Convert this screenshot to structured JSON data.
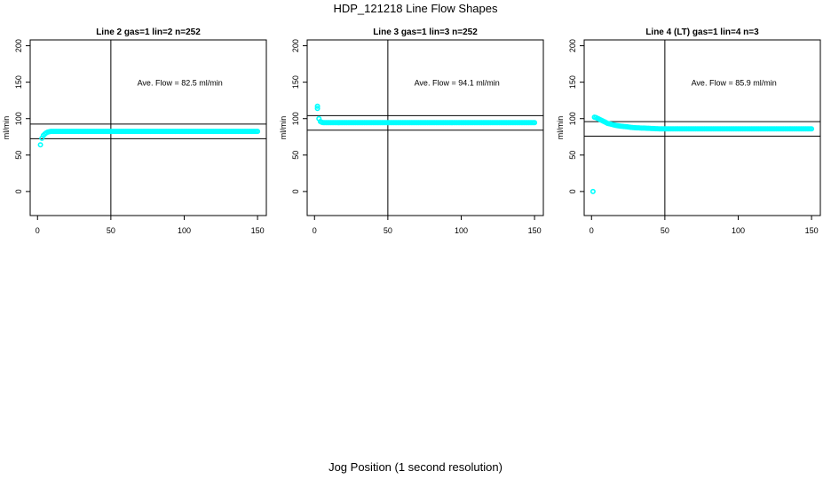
{
  "title": "HDP_121218  Line Flow Shapes",
  "xcaption": "Jog Position (1 second resolution)",
  "colors": {
    "points": "#00ffff",
    "axes": "#000000"
  },
  "chart_data": [
    {
      "type": "scatter",
      "title": "Line 2 gas=1 lin=2 n=252",
      "ylabel": "ml/min",
      "xlim": [
        -5,
        156
      ],
      "ylim": [
        -33,
        208
      ],
      "xticks": [
        0,
        50,
        100,
        150
      ],
      "yticks": [
        0,
        50,
        100,
        150,
        200
      ],
      "vline": 50,
      "hlines": [
        92.5,
        72.5
      ],
      "annotation": {
        "text": "Ave. Flow =  82.5  ml/min",
        "x": 68,
        "y": 149
      },
      "extra_points": [
        [
          2,
          64
        ]
      ],
      "x_start": 3,
      "y": [
        73,
        77,
        79,
        80.5,
        81.5,
        82,
        82.5,
        82.5,
        82.5,
        82.5,
        82.5,
        82.5,
        82.5,
        82.5,
        82.5,
        82.5,
        82.5,
        82.5,
        82.5,
        82.5,
        82.5,
        82.5,
        82.5,
        82.5,
        82.5,
        82.5,
        82.5,
        82.5,
        82.5,
        82.5,
        82.5,
        82.5,
        82.5,
        82.5,
        82.5,
        82.5,
        82.5,
        82.5,
        82.5,
        82.5,
        82.5,
        82.5,
        82.5,
        82.5,
        82.5,
        82.5,
        82.5,
        82.5,
        82.5,
        82.5,
        82.5,
        82.5,
        82.5,
        82.5,
        82.5,
        82.5,
        82.5,
        82.5,
        82.5,
        82.5,
        82.5,
        82.5,
        82.5,
        82.5,
        82.5,
        82.5,
        82.5,
        82.5,
        82.5,
        82.5,
        82.5,
        82.5,
        82.5,
        82.5,
        82.5,
        82.5,
        82.5,
        82.5,
        82.5,
        82.5,
        82.5,
        82.5,
        82.5,
        82.5,
        82.5,
        82.5,
        82.5,
        82.5,
        82.5,
        82.5,
        82.5,
        82.5,
        82.5,
        82.5,
        82.5,
        82.5,
        82.5,
        82.5,
        82.5,
        82.5,
        82.5,
        82.5,
        82.5,
        82.5,
        82.5,
        82.5,
        82.5,
        82.5,
        82.5,
        82.5,
        82.5,
        82.5,
        82.5,
        82.5,
        82.5,
        82.5,
        82.5,
        82.5,
        82.5,
        82.5,
        82.5,
        82.5,
        82.5,
        82.5,
        82.5,
        82.5,
        82.5,
        82.5,
        82.5,
        82.5,
        82.5,
        82.5,
        82.5,
        82.5,
        82.5,
        82.5,
        82.5,
        82.5,
        82.5,
        82.5,
        82.5,
        82.5,
        82.5,
        82.5,
        82.5,
        82.5,
        82.5,
        82.5
      ]
    },
    {
      "type": "scatter",
      "title": "Line 3 gas=1 lin=3 n=252",
      "ylabel": "ml/min",
      "xlim": [
        -5,
        156
      ],
      "ylim": [
        -33,
        208
      ],
      "xticks": [
        0,
        50,
        100,
        150
      ],
      "yticks": [
        0,
        50,
        100,
        150,
        200
      ],
      "vline": 50,
      "hlines": [
        104.1,
        84.1
      ],
      "annotation": {
        "text": "Ave. Flow =  94.1  ml/min",
        "x": 68,
        "y": 149
      },
      "extra_points": [
        [
          2,
          117
        ],
        [
          2,
          114
        ]
      ],
      "x_start": 3,
      "y": [
        100,
        96,
        95,
        94.5,
        94.5,
        94.5,
        94.5,
        94.5,
        94.5,
        94.5,
        94.5,
        94.5,
        94.5,
        94.5,
        94.5,
        94.5,
        94.5,
        94.5,
        94.5,
        94.5,
        94.5,
        94.5,
        94.5,
        94.5,
        94.5,
        94.5,
        94.5,
        94.5,
        94.5,
        94.5,
        94.5,
        94.5,
        94.5,
        94.5,
        94.5,
        94.5,
        94.5,
        94.5,
        94.5,
        94.5,
        94.5,
        94.5,
        94.5,
        94.5,
        94.5,
        94.5,
        94.5,
        94.5,
        94.5,
        94.5,
        94.5,
        94.5,
        94.5,
        94.5,
        94.5,
        94.5,
        94.5,
        94.5,
        94.5,
        94.5,
        94.5,
        94.5,
        94.5,
        94.5,
        94.5,
        94.5,
        94.5,
        94.5,
        94.5,
        94.5,
        94.5,
        94.5,
        94.5,
        94.5,
        94.5,
        94.5,
        94.5,
        94.5,
        94.5,
        94.5,
        94.5,
        94.5,
        94.5,
        94.5,
        94.5,
        94.5,
        94.5,
        94.5,
        94.5,
        94.5,
        94.5,
        94.5,
        94.5,
        94.5,
        94.5,
        94.5,
        94.5,
        94.5,
        94.5,
        94.5,
        94.5,
        94.5,
        94.5,
        94.5,
        94.5,
        94.5,
        94.5,
        94.5,
        94.5,
        94.5,
        94.5,
        94.5,
        94.5,
        94.5,
        94.5,
        94.5,
        94.5,
        94.5,
        94.5,
        94.5,
        94.5,
        94.5,
        94.5,
        94.5,
        94.5,
        94.5,
        94.5,
        94.5,
        94.5,
        94.5,
        94.5,
        94.5,
        94.5,
        94.5,
        94.5,
        94.5,
        94.5,
        94.5,
        94.5,
        94.5,
        94.5,
        94.5,
        94.5,
        94.5,
        94.5,
        94.5,
        94.5,
        94.5
      ]
    },
    {
      "type": "scatter",
      "title": "Line 4 (LT) gas=1 lin=4 n=3",
      "ylabel": "ml/min",
      "xlim": [
        -5,
        156
      ],
      "ylim": [
        -33,
        208
      ],
      "xticks": [
        0,
        50,
        100,
        150
      ],
      "yticks": [
        0,
        50,
        100,
        150,
        200
      ],
      "vline": 50,
      "hlines": [
        95.9,
        75.9
      ],
      "annotation": {
        "text": "Ave. Flow =  85.9  ml/min",
        "x": 68,
        "y": 149
      },
      "extra_points": [
        [
          1,
          0
        ]
      ],
      "x_start": 2,
      "y": [
        102,
        101.5,
        100.5,
        99.5,
        98.5,
        97.5,
        96.5,
        95.5,
        94.5,
        93.5,
        93,
        92.5,
        92,
        91.5,
        91,
        90.5,
        90.2,
        90,
        89.7,
        89.5,
        89.2,
        89,
        88.8,
        88.5,
        88.2,
        88,
        87.8,
        87.6,
        87.5,
        87.4,
        87.3,
        87.2,
        87.1,
        87,
        87,
        86.9,
        86.8,
        86.7,
        86.6,
        86.5,
        86.4,
        86.3,
        86.2,
        86.1,
        86,
        86,
        86,
        86,
        86,
        86,
        86,
        86,
        86,
        86,
        86,
        86,
        86,
        86,
        86,
        86,
        86,
        86,
        86,
        86,
        86,
        86,
        86,
        86,
        86,
        86,
        86,
        86,
        86,
        86,
        86,
        86,
        86,
        86,
        86,
        86,
        86,
        86,
        86,
        86,
        86,
        86,
        86,
        86,
        86,
        86,
        86,
        86,
        86,
        86,
        86,
        86,
        86,
        86,
        86,
        86,
        86,
        86,
        86,
        86,
        86,
        86,
        86,
        86,
        86,
        86,
        86,
        86,
        86,
        86,
        86,
        86,
        86,
        86,
        86,
        86,
        86,
        86,
        86,
        86,
        86,
        86,
        86,
        86,
        86,
        86,
        86,
        86,
        86,
        86,
        86,
        86,
        86,
        86,
        86,
        86,
        86,
        86,
        86,
        86,
        86,
        86,
        86,
        86,
        86
      ]
    }
  ]
}
